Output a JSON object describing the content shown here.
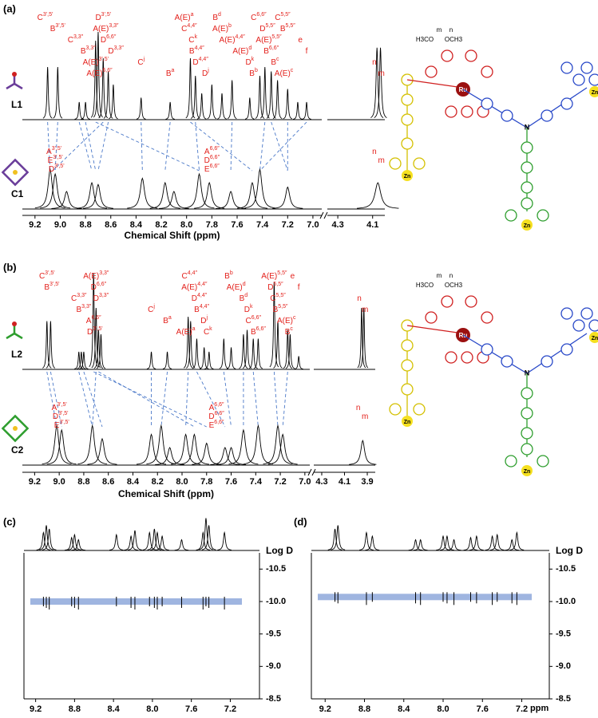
{
  "chart_data": [
    {
      "type": "nmr",
      "label": "(a)",
      "x_label": "Chemical Shift (ppm)",
      "xlim": [
        9.3,
        6.93
      ],
      "x2lim": [
        4.36,
        4.03
      ],
      "xticks": [
        9.2,
        {
          "value": 9,
          "label": "9.0"
        },
        8.8,
        8.6,
        8.4,
        8.2,
        {
          "value": 8,
          "label": "8.0"
        },
        7.8,
        7.6,
        7.4,
        7.2,
        {
          "value": 7,
          "label": "7.0"
        }
      ],
      "x2ticks": [
        4.3,
        4.1
      ],
      "spectra": [
        {
          "name": "L1",
          "color": "#000000",
          "width": 0.006,
          "peaks": [
            9.1,
            9.02,
            8.85,
            8.8,
            8.72,
            8.7,
            8.66,
            8.62,
            8.58,
            8.36,
            8.13,
            7.97,
            7.93,
            7.88,
            7.8,
            7.72,
            7.64,
            7.5,
            7.42,
            7.38,
            7.33,
            7.28,
            7.2,
            7.12,
            7.05,
            4.075,
            4.055
          ],
          "heights": [
            60,
            60,
            20,
            20,
            90,
            100,
            70,
            55,
            40,
            25,
            20,
            70,
            50,
            30,
            40,
            30,
            45,
            25,
            50,
            60,
            55,
            45,
            35,
            20,
            20,
            82,
            82
          ],
          "annotations": [
            {
              "label": "C",
              "sup": "3',5'",
              "x": 9.12
            },
            {
              "label": "B",
              "sup": "3',5'",
              "x": 9.02
            },
            {
              "label": "C",
              "sup": "3,3″",
              "x": 8.88
            },
            {
              "label": "B",
              "sup": "3,3″",
              "x": 8.78
            },
            {
              "label": "A(E)",
              "sup": "3',5'",
              "x": 8.72
            },
            {
              "label": "A(E)",
              "sup": "6,6″",
              "x": 8.69
            },
            {
              "label": "D",
              "sup": "3',5'",
              "x": 8.66
            },
            {
              "label": "A(E)",
              "sup": "3,3″",
              "x": 8.64
            },
            {
              "label": "D",
              "sup": "6,6″",
              "x": 8.62
            },
            {
              "label": "D",
              "sup": "3,3″",
              "x": 8.56
            },
            {
              "label": "C",
              "sup": "j",
              "x": 8.36
            },
            {
              "label": "B",
              "sup": "a",
              "x": 8.13
            },
            {
              "label": "A(E)",
              "sup": "a",
              "x": 8.02
            },
            {
              "label": "C",
              "sup": "4,4″",
              "x": 7.98
            },
            {
              "label": "C",
              "sup": "k",
              "x": 7.95
            },
            {
              "label": "B",
              "sup": "4,4″",
              "x": 7.92
            },
            {
              "label": "D",
              "sup": "4,4″",
              "x": 7.89
            },
            {
              "label": "D",
              "sup": "j",
              "x": 7.85
            },
            {
              "label": "B",
              "sup": "d",
              "x": 7.76
            },
            {
              "label": "A(E)",
              "sup": "b",
              "x": 7.72
            },
            {
              "label": "A(E)",
              "sup": "4,4″",
              "x": 7.64
            },
            {
              "label": "A(E)",
              "sup": "d",
              "x": 7.56
            },
            {
              "label": "D",
              "sup": "k",
              "x": 7.5
            },
            {
              "label": "B",
              "sup": "b",
              "x": 7.47
            },
            {
              "label": "C",
              "sup": "6,6″",
              "x": 7.43
            },
            {
              "label": "D",
              "sup": "5,5″",
              "x": 7.36
            },
            {
              "label": "A(E)",
              "sup": "5,5″",
              "x": 7.35
            },
            {
              "label": "B",
              "sup": "6,6″",
              "x": 7.33
            },
            {
              "label": "B",
              "sup": "c",
              "x": 7.3
            },
            {
              "label": "A(E)",
              "sup": "c",
              "x": 7.23
            },
            {
              "label": "C",
              "sup": "5,5″",
              "x": 7.24
            },
            {
              "label": "B",
              "sup": "5,5″",
              "x": 7.2
            },
            {
              "label": "e",
              "x": 7.1
            },
            {
              "label": "f",
              "x": 7.05
            },
            {
              "label": "n",
              "x": 4.09
            },
            {
              "label": "m",
              "x": 4.05
            }
          ]
        },
        {
          "name": "C1",
          "color": "#000000",
          "width": 0.02,
          "peaks": [
            9.08,
            9.04,
            8.95,
            8.75,
            8.7,
            8.35,
            8.17,
            8.1,
            7.9,
            7.82,
            7.65,
            7.48,
            7.42,
            7.2,
            4.07
          ],
          "heights": [
            45,
            40,
            20,
            30,
            28,
            35,
            30,
            20,
            40,
            30,
            20,
            30,
            45,
            25,
            30
          ],
          "annotations": [
            {
              "label": "A",
              "sup": "3',5'",
              "x": 9.05
            },
            {
              "label": "E",
              "sup": "3',5'",
              "x": 9.04
            },
            {
              "label": "D",
              "sup": "3',5'",
              "x": 9.03
            },
            {
              "label": "A",
              "sup": "6,6″",
              "x": 7.8
            },
            {
              "label": "D",
              "sup": "6,6″",
              "x": 7.8
            },
            {
              "label": "E",
              "sup": "6,6″",
              "x": 7.8
            },
            {
              "label": "n",
              "x": 4.09
            },
            {
              "label": "m",
              "x": 4.05
            }
          ]
        }
      ],
      "links": [
        [
          9.1,
          9.08
        ],
        [
          9.02,
          9.04
        ],
        [
          8.85,
          8.75
        ],
        [
          8.8,
          8.72
        ],
        [
          8.72,
          7.9
        ],
        [
          8.66,
          9.06
        ],
        [
          8.62,
          8.7
        ],
        [
          8.36,
          8.35
        ],
        [
          8.13,
          8.17
        ],
        [
          7.97,
          7.48
        ],
        [
          7.93,
          7.9
        ],
        [
          7.64,
          7.65
        ],
        [
          7.38,
          7.42
        ],
        [
          7.33,
          7.2
        ],
        [
          7.2,
          7.2
        ],
        [
          7.05,
          7.42
        ]
      ],
      "structure": {
        "metal": "Ru",
        "ion": "Zn",
        "core": "N",
        "labels": [
          "m",
          "n",
          "OCH3",
          "H3CO"
        ]
      }
    },
    {
      "type": "nmr",
      "label": "(b)",
      "x_label": "Chemical Shift (ppm)",
      "xlim": [
        9.3,
        6.96
      ],
      "x2lim": [
        4.37,
        3.83
      ],
      "xticks": [
        9.2,
        {
          "value": 9,
          "label": "9.0"
        },
        8.8,
        8.6,
        8.4,
        8.2,
        {
          "value": 8,
          "label": "8.0"
        },
        7.8,
        7.6,
        7.4,
        7.2,
        {
          "value": 7,
          "label": "7.0"
        }
      ],
      "x2ticks": [
        4.3,
        4.1,
        3.9
      ],
      "spectra": [
        {
          "name": "L2",
          "color": "#000000",
          "width": 0.006,
          "peaks": [
            9.1,
            9.07,
            8.84,
            8.82,
            8.8,
            8.72,
            8.7,
            8.68,
            8.66,
            8.25,
            8.12,
            7.95,
            7.93,
            7.88,
            7.82,
            7.78,
            7.66,
            7.6,
            7.5,
            7.47,
            7.42,
            7.38,
            7.25,
            7.22,
            7.14,
            7.12,
            7.05,
            3.95,
            3.93
          ],
          "heights": [
            55,
            55,
            20,
            20,
            20,
            110,
            70,
            45,
            40,
            20,
            20,
            60,
            55,
            35,
            25,
            20,
            35,
            25,
            40,
            45,
            35,
            35,
            100,
            55,
            45,
            40,
            15,
            70,
            70
          ],
          "annotations": [
            {
              "label": "C",
              "sup": "3',5'",
              "x": 9.1
            },
            {
              "label": "B",
              "sup": "3',5'",
              "x": 9.06
            },
            {
              "label": "C",
              "sup": "3,3″",
              "x": 8.84
            },
            {
              "label": "B",
              "sup": "3,3″",
              "x": 8.8
            },
            {
              "label": "A",
              "sup": "6,6″",
              "x": 8.72
            },
            {
              "label": "D",
              "sup": "3',5'",
              "x": 8.71
            },
            {
              "label": "A(E)",
              "sup": "3,3″",
              "x": 8.7
            },
            {
              "label": "D",
              "sup": "6,6″",
              "x": 8.68
            },
            {
              "label": "D",
              "sup": "3,3″",
              "x": 8.66
            },
            {
              "label": "C",
              "sup": "j",
              "x": 8.25
            },
            {
              "label": "B",
              "sup": "a",
              "x": 8.12
            },
            {
              "label": "A(E)",
              "sup": "a",
              "x": 7.97
            },
            {
              "label": "C",
              "sup": "4,4″",
              "x": 7.94
            },
            {
              "label": "A(E)",
              "sup": "4,4″",
              "x": 7.9
            },
            {
              "label": "D",
              "sup": "4,4″",
              "x": 7.86
            },
            {
              "label": "B",
              "sup": "4,4″",
              "x": 7.84
            },
            {
              "label": "D",
              "sup": "j",
              "x": 7.82
            },
            {
              "label": "C",
              "sup": "k",
              "x": 7.79
            },
            {
              "label": "B",
              "sup": "b",
              "x": 7.62
            },
            {
              "label": "A(E)",
              "sup": "d",
              "x": 7.56
            },
            {
              "label": "B",
              "sup": "d",
              "x": 7.5
            },
            {
              "label": "D",
              "sup": "k",
              "x": 7.46
            },
            {
              "label": "C",
              "sup": "6,6″",
              "x": 7.42
            },
            {
              "label": "B",
              "sup": "6,6″",
              "x": 7.38
            },
            {
              "label": "A(E)",
              "sup": "5,5″",
              "x": 7.25
            },
            {
              "label": "D",
              "sup": "5,5″",
              "x": 7.24
            },
            {
              "label": "C",
              "sup": "5,5″",
              "x": 7.22
            },
            {
              "label": "B",
              "sup": "5,5″",
              "x": 7.2
            },
            {
              "label": "A(E)",
              "sup": "c",
              "x": 7.15
            },
            {
              "label": "B",
              "sup": "c",
              "x": 7.13
            },
            {
              "label": "e",
              "x": 7.1
            },
            {
              "label": "f",
              "x": 7.05
            },
            {
              "label": "n",
              "x": 3.97
            },
            {
              "label": "m",
              "x": 3.92
            }
          ]
        },
        {
          "name": "C2",
          "color": "#000000",
          "width": 0.02,
          "peaks": [
            9.02,
            8.98,
            8.73,
            8.65,
            8.25,
            8.17,
            8.1,
            7.97,
            7.9,
            7.8,
            7.65,
            7.6,
            7.5,
            7.38,
            7.22,
            7.18,
            3.94
          ],
          "heights": [
            45,
            40,
            45,
            30,
            35,
            45,
            20,
            35,
            35,
            25,
            20,
            20,
            40,
            45,
            45,
            35,
            28
          ],
          "annotations": [
            {
              "label": "A",
              "sup": "3',5'",
              "x": 9.0
            },
            {
              "label": "D",
              "sup": "3',5'",
              "x": 8.99
            },
            {
              "label": "E",
              "sup": "3',5'",
              "x": 8.98
            },
            {
              "label": "A",
              "sup": "6,6″",
              "x": 7.72
            },
            {
              "label": "D",
              "sup": "6,6″",
              "x": 7.72
            },
            {
              "label": "E",
              "sup": "6,6″",
              "x": 7.72
            },
            {
              "label": "n",
              "x": 3.98
            },
            {
              "label": "m",
              "x": 3.92
            }
          ]
        }
      ],
      "links": [
        [
          9.1,
          9.02
        ],
        [
          9.07,
          8.98
        ],
        [
          8.84,
          8.73
        ],
        [
          8.8,
          8.65
        ],
        [
          8.72,
          7.8
        ],
        [
          8.7,
          8.73
        ],
        [
          8.68,
          7.9
        ],
        [
          8.25,
          8.25
        ],
        [
          8.12,
          8.17
        ],
        [
          7.95,
          7.97
        ],
        [
          7.88,
          7.65
        ],
        [
          7.66,
          7.6
        ],
        [
          7.5,
          7.5
        ],
        [
          7.42,
          7.38
        ],
        [
          7.25,
          7.22
        ],
        [
          7.14,
          7.18
        ]
      ],
      "structure": {
        "metal": "Ru",
        "ion": "Zn",
        "core": "N",
        "labels": [
          "m",
          "n",
          "OCH3",
          "H3CO"
        ]
      }
    },
    {
      "type": "dosy",
      "label": "(c)",
      "y_label": "Log D",
      "xlim": [
        9.32,
        6.9
      ],
      "ylim": [
        -10.75,
        -8.5
      ],
      "xticks": [
        9.2,
        8.8,
        8.4,
        {
          "value": 8,
          "label": "8.0"
        },
        7.6,
        7.2
      ],
      "yticks": [
        -10.5,
        {
          "value": -10,
          "label": "-10.0"
        },
        -9.5,
        {
          "value": -9,
          "label": "-9.0"
        },
        -8.5
      ],
      "band": -10.0,
      "band_color": "#9fb5e0",
      "width": 0.012,
      "peaks": [
        9.12,
        9.09,
        9.06,
        8.83,
        8.8,
        8.76,
        8.37,
        8.22,
        8.18,
        8.03,
        7.98,
        7.95,
        7.9,
        7.7,
        7.48,
        7.45,
        7.42,
        7.26
      ],
      "heights": [
        25,
        35,
        30,
        18,
        22,
        15,
        22,
        20,
        28,
        25,
        30,
        25,
        20,
        15,
        25,
        45,
        35,
        25
      ]
    },
    {
      "type": "dosy",
      "label": "(d)",
      "y_label": "Log D",
      "x_label": "ppm",
      "xlim": [
        9.34,
        6.92
      ],
      "ylim": [
        -10.75,
        -8.5
      ],
      "xticks": [
        9.2,
        8.8,
        8.4,
        {
          "value": 8,
          "label": "8.0"
        },
        7.6,
        7.2
      ],
      "yticks": [
        -10.5,
        {
          "value": -10,
          "label": "-10.0"
        },
        -9.5,
        {
          "value": -9,
          "label": "-9.0"
        },
        -8.5
      ],
      "band": -10.07,
      "band_color": "#9fb5e0",
      "width": 0.012,
      "peaks": [
        9.1,
        9.07,
        8.78,
        8.72,
        8.28,
        8.23,
        8.0,
        7.96,
        7.89,
        7.72,
        7.66,
        7.5,
        7.45,
        7.3,
        7.25
      ],
      "heights": [
        30,
        35,
        25,
        20,
        15,
        15,
        20,
        20,
        15,
        18,
        20,
        20,
        22,
        15,
        25
      ]
    }
  ]
}
